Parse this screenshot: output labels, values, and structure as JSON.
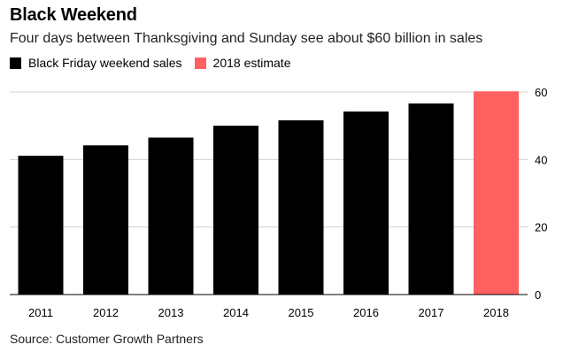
{
  "title": "Black Weekend",
  "subtitle": "Four days between Thanksgiving and Sunday see about $60 billion in sales",
  "legend": [
    {
      "label": "Black Friday weekend sales",
      "color": "#000000"
    },
    {
      "label": "2018 estimate",
      "color": "#ff6060"
    }
  ],
  "source": "Source: Customer Growth Partners",
  "chart_data": {
    "type": "bar",
    "categories": [
      "2011",
      "2012",
      "2013",
      "2014",
      "2015",
      "2016",
      "2017",
      "2018"
    ],
    "series": [
      {
        "name": "Black Friday weekend sales",
        "values": [
          41.1,
          44.2,
          46.5,
          50.0,
          51.6,
          54.2,
          56.6,
          null
        ],
        "color": "#000000"
      },
      {
        "name": "2018 estimate",
        "values": [
          null,
          null,
          null,
          null,
          null,
          null,
          null,
          60.2
        ],
        "color": "#ff6060"
      }
    ],
    "ylim": [
      0,
      60
    ],
    "yticks": [
      0,
      20,
      40,
      60
    ],
    "y_axis_side": "right",
    "grid": true,
    "legend_position": "top-left"
  }
}
